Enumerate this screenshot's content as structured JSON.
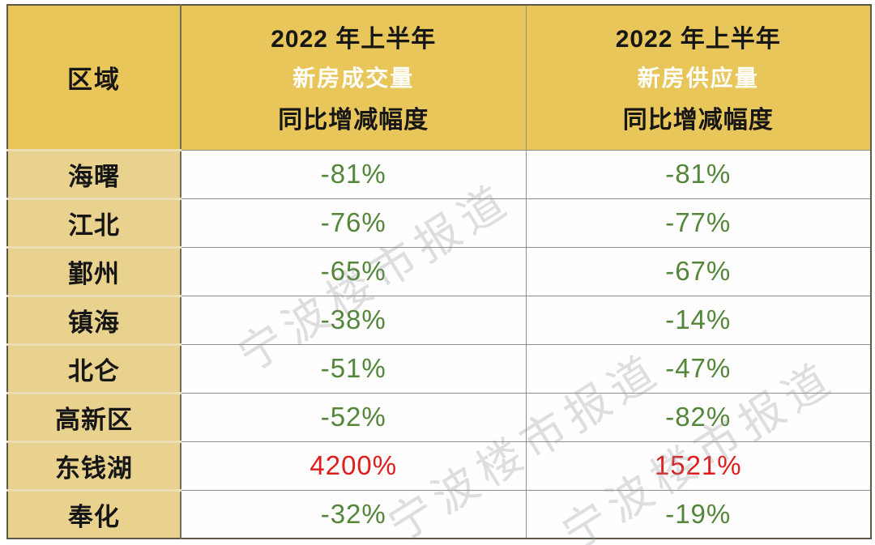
{
  "chart_data": {
    "type": "table",
    "title": "",
    "columns": [
      {
        "title": "区域"
      },
      {
        "period": "2022 年上半年",
        "metric": "新房成交量",
        "label": "同比增减幅度"
      },
      {
        "period": "2022 年上半年",
        "metric": "新房供应量",
        "label": "同比增减幅度"
      }
    ],
    "rows": [
      [
        "海曙",
        "-81%",
        "-81%"
      ],
      [
        "江北",
        "-76%",
        "-77%"
      ],
      [
        "鄞州",
        "-65%",
        "-67%"
      ],
      [
        "镇海",
        "-38%",
        "-14%"
      ],
      [
        "北仑",
        "-51%",
        "-47%"
      ],
      [
        "高新区",
        "-52%",
        "-82%"
      ],
      [
        "东钱湖",
        "4200%",
        "1521%"
      ],
      [
        "奉化",
        "-32%",
        "-19%"
      ]
    ],
    "highlight_row": "东钱湖",
    "layout_hints": {
      "grid": "on",
      "header_rows": 1,
      "region_column_highlighted": true
    }
  },
  "watermark": {
    "text": "宁波楼市报道"
  },
  "colors": {
    "header_bg": "#e8c65a",
    "region_column_bg": "#e9d28d",
    "header_text_dark": "#161616",
    "header_metric_text": "#ffffff",
    "negative_value_green": "#54863a",
    "increase_value_red": "#df1d1d",
    "gridline_gray": "#8f8f8f",
    "outer_border": "#5d574a",
    "watermark_gray": "#d9d9d9",
    "cell_bg_white": "#fefefe"
  }
}
